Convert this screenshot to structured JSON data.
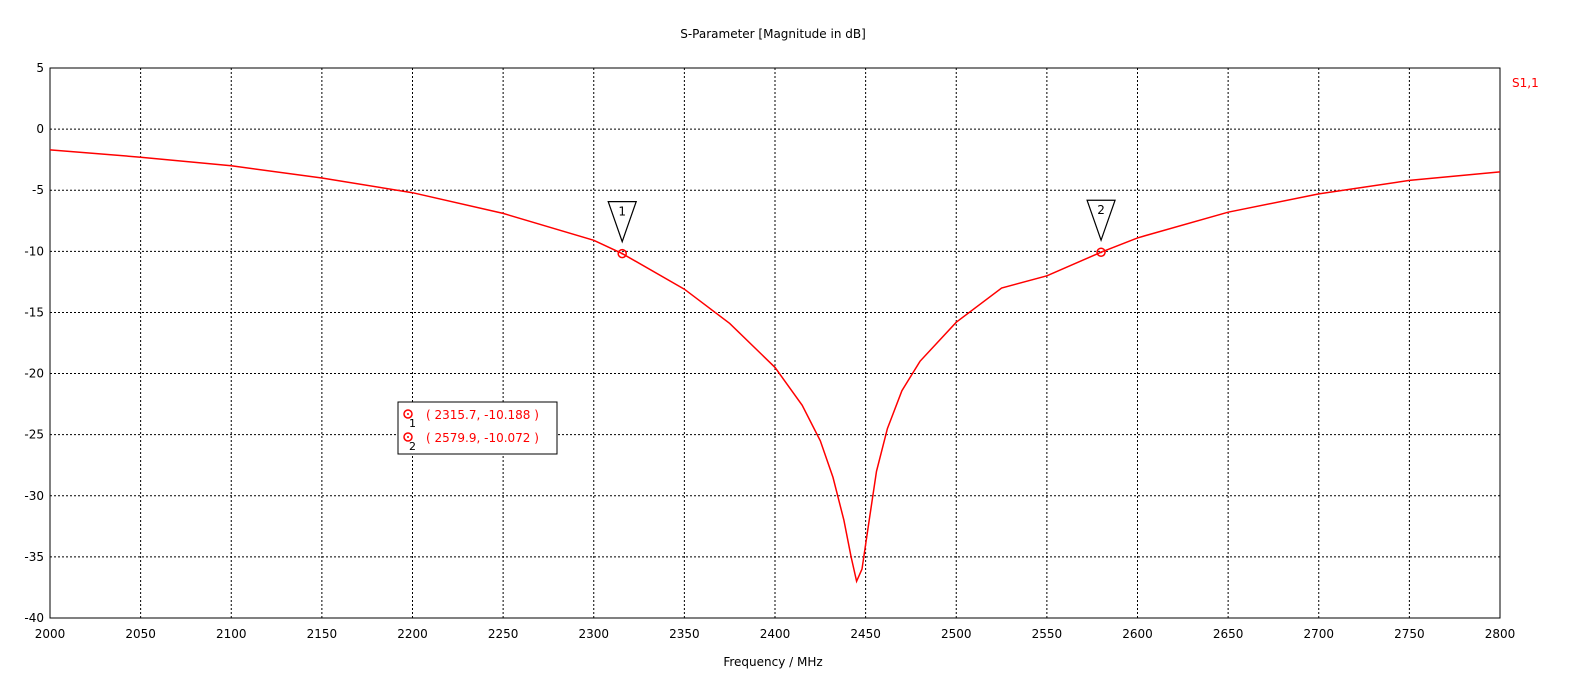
{
  "chart_data": {
    "type": "line",
    "title": "S-Parameter [Magnitude in dB]",
    "xlabel": "Frequency / MHz",
    "ylabel": "",
    "xlim": [
      2000,
      2800
    ],
    "ylim": [
      -40,
      5
    ],
    "xticks": [
      2000,
      2050,
      2100,
      2150,
      2200,
      2250,
      2300,
      2350,
      2400,
      2450,
      2500,
      2550,
      2600,
      2650,
      2700,
      2750,
      2800
    ],
    "yticks": [
      5,
      0,
      -5,
      -10,
      -15,
      -20,
      -25,
      -30,
      -35,
      -40
    ],
    "grid": true,
    "line_color": "#ff0000",
    "series": [
      {
        "name": "S1,1",
        "color": "#ff0000",
        "x": [
          2000,
          2050,
          2100,
          2150,
          2200,
          2250,
          2300,
          2315.7,
          2350,
          2375,
          2400,
          2415,
          2425,
          2432,
          2438,
          2442,
          2445,
          2448,
          2452,
          2456,
          2462,
          2470,
          2480,
          2500,
          2525,
          2550,
          2579.9,
          2600,
          2650,
          2700,
          2750,
          2800
        ],
        "y": [
          -1.7,
          -2.3,
          -3.0,
          -4.0,
          -5.2,
          -6.9,
          -9.1,
          -10.188,
          -13.1,
          -15.9,
          -19.5,
          -22.6,
          -25.5,
          -28.5,
          -32.0,
          -35.0,
          -37.0,
          -36.0,
          -32.0,
          -28.0,
          -24.5,
          -21.4,
          -19.0,
          -15.8,
          -13.0,
          -12.0,
          -10.072,
          -8.9,
          -6.8,
          -5.3,
          -4.2,
          -3.5
        ]
      }
    ],
    "markers": [
      {
        "id": "1",
        "x": 2315.7,
        "y": -10.188,
        "label": "( 2315.7, -10.188 )"
      },
      {
        "id": "2",
        "x": 2579.9,
        "y": -10.072,
        "label": "( 2579.9, -10.072 )"
      }
    ]
  }
}
